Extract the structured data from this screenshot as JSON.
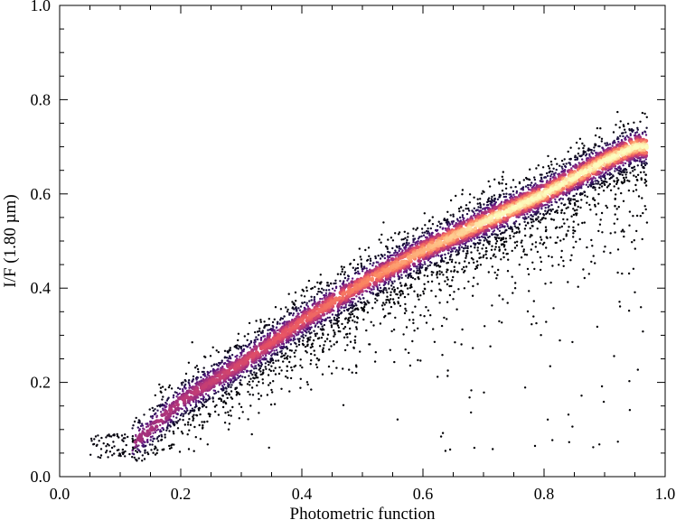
{
  "chart_data": {
    "type": "scatter",
    "style": "density-colored scatter (magma colormap: dark purple sparse, pale yellow dense)",
    "title": "",
    "xlabel": "Photometric function",
    "ylabel": "I/F (1.80 µm)",
    "xlim": [
      0.0,
      1.0
    ],
    "ylim": [
      0.0,
      1.0
    ],
    "x_ticks": [
      "0.0",
      "0.2",
      "0.4",
      "0.6",
      "0.8",
      "1.0"
    ],
    "y_ticks": [
      "0.0",
      "0.2",
      "0.4",
      "0.6",
      "0.8",
      "1.0"
    ],
    "grid": false,
    "legend": "none",
    "trend": {
      "x": [
        0.05,
        0.12,
        0.15,
        0.2,
        0.3,
        0.4,
        0.5,
        0.6,
        0.7,
        0.8,
        0.9,
        0.95,
        0.97
      ],
      "y": [
        0.07,
        0.07,
        0.1,
        0.16,
        0.24,
        0.33,
        0.41,
        0.48,
        0.54,
        0.6,
        0.67,
        0.7,
        0.7
      ]
    },
    "colors": {
      "low_density": "#000004",
      "mid_density": "#b63679",
      "high_density": "#fcfdbf"
    }
  }
}
